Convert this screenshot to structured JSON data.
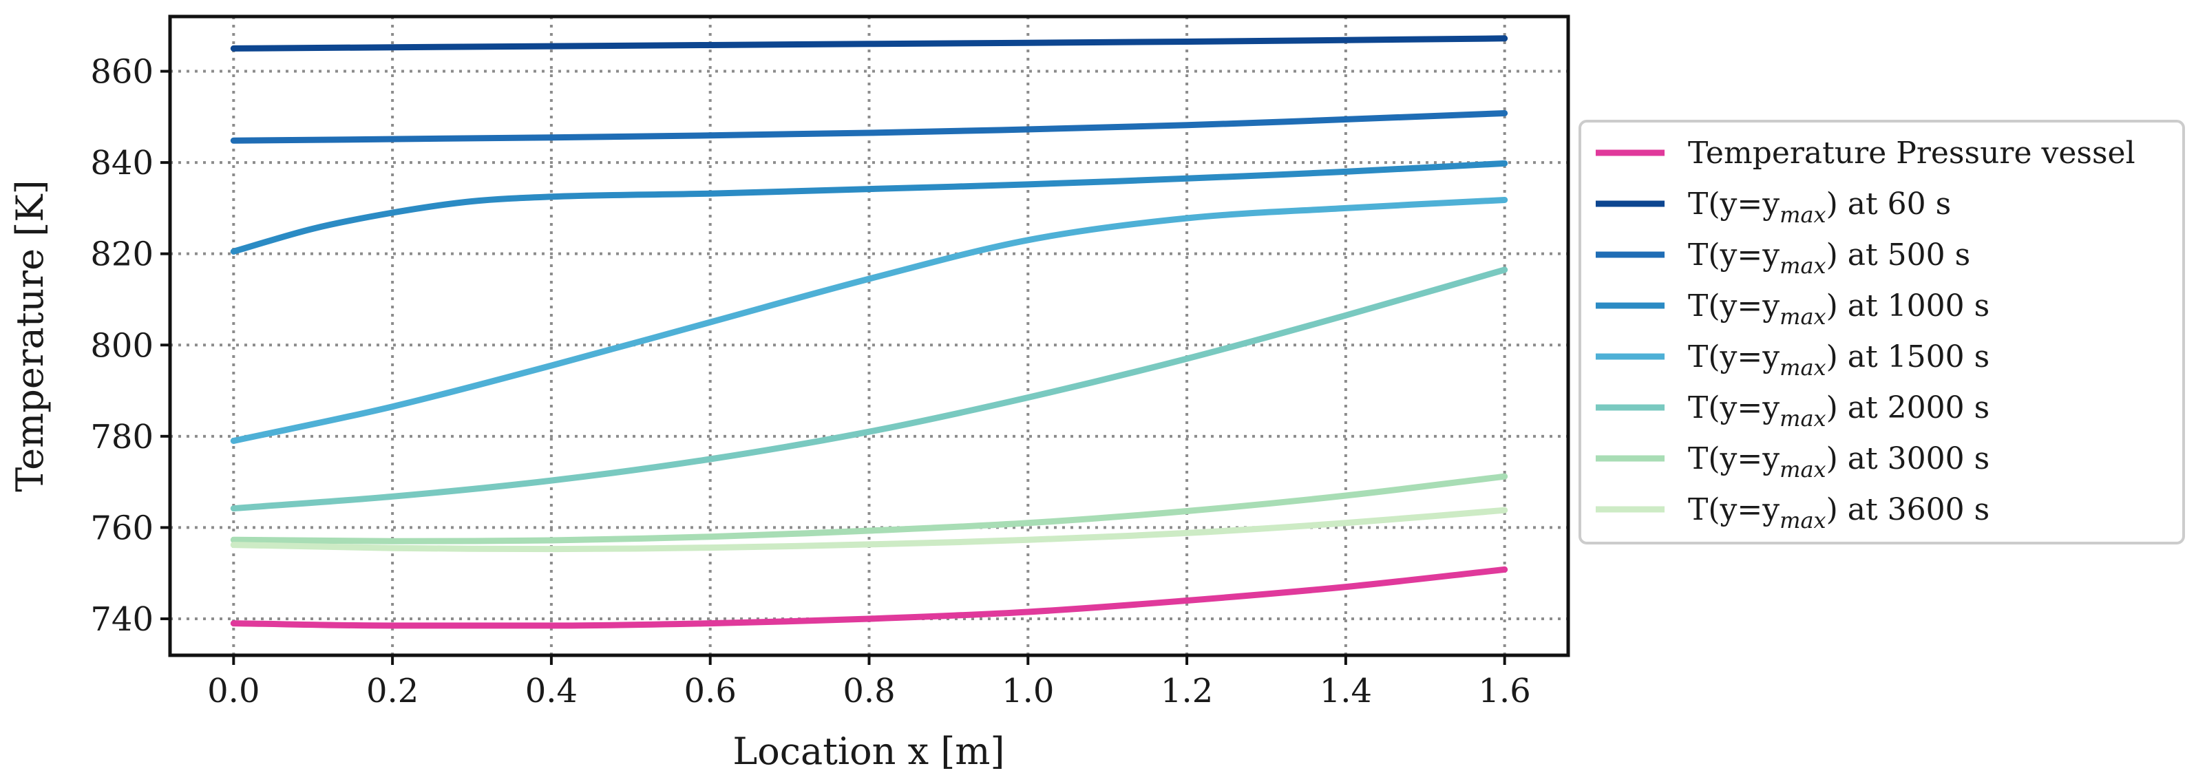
{
  "chart_data": {
    "type": "line",
    "xlabel": "Location x [m]",
    "ylabel": "Temperature [K]",
    "xlim": [
      -0.08,
      1.68
    ],
    "ylim": [
      732,
      872
    ],
    "xticks": [
      0.0,
      0.2,
      0.4,
      0.6,
      0.8,
      1.0,
      1.2,
      1.4,
      1.6
    ],
    "xtick_labels": [
      "0.0",
      "0.2",
      "0.4",
      "0.6",
      "0.8",
      "1.0",
      "1.2",
      "1.4",
      "1.6"
    ],
    "yticks": [
      740,
      760,
      780,
      800,
      820,
      840,
      860
    ],
    "ytick_labels": [
      "740",
      "760",
      "780",
      "800",
      "820",
      "840",
      "860"
    ],
    "grid": true,
    "legend_placement": "outside right",
    "series": [
      {
        "label": "Temperature Pressure vessel",
        "color": "#e0399b",
        "x": [
          0.0,
          0.2,
          0.4,
          0.6,
          0.8,
          1.0,
          1.2,
          1.4,
          1.6
        ],
        "y": [
          739.0,
          738.5,
          738.5,
          739.0,
          740.0,
          741.5,
          744.0,
          747.0,
          750.8
        ]
      },
      {
        "label_prefix": "T(y=y",
        "label_sub": "max",
        "label_suffix": ") at 60 s",
        "color": "#0d4690",
        "x": [
          0.0,
          0.4,
          0.8,
          1.2,
          1.6
        ],
        "y": [
          865.0,
          865.5,
          866.0,
          866.5,
          867.2
        ]
      },
      {
        "label_prefix": "T(y=y",
        "label_sub": "max",
        "label_suffix": ") at 500 s",
        "color": "#1f6db5",
        "x": [
          0.0,
          0.4,
          0.8,
          1.2,
          1.6
        ],
        "y": [
          844.8,
          845.5,
          846.5,
          848.2,
          850.8
        ]
      },
      {
        "label_prefix": "T(y=y",
        "label_sub": "max",
        "label_suffix": ") at 1000 s",
        "color": "#2b8bc4",
        "x": [
          0.0,
          0.1,
          0.2,
          0.3,
          0.4,
          0.6,
          0.8,
          1.0,
          1.2,
          1.4,
          1.6
        ],
        "y": [
          820.5,
          825.5,
          829.0,
          831.5,
          832.5,
          833.2,
          834.2,
          835.2,
          836.5,
          838.0,
          839.8
        ]
      },
      {
        "label_prefix": "T(y=y",
        "label_sub": "max",
        "label_suffix": ") at 1500 s",
        "color": "#4eb0d6",
        "x": [
          0.0,
          0.2,
          0.4,
          0.6,
          0.8,
          1.0,
          1.2,
          1.4,
          1.6
        ],
        "y": [
          779.0,
          786.5,
          795.5,
          805.0,
          814.5,
          823.0,
          827.8,
          830.0,
          831.8
        ]
      },
      {
        "label_prefix": "T(y=y",
        "label_sub": "max",
        "label_suffix": ") at 2000 s",
        "color": "#79c9c0",
        "x": [
          0.0,
          0.2,
          0.4,
          0.6,
          0.8,
          1.0,
          1.2,
          1.4,
          1.6
        ],
        "y": [
          764.2,
          766.8,
          770.3,
          775.0,
          781.0,
          788.5,
          797.0,
          806.5,
          816.5
        ]
      },
      {
        "label_prefix": "T(y=y",
        "label_sub": "max",
        "label_suffix": ") at 3000 s",
        "color": "#a8ddb5",
        "x": [
          0.0,
          0.2,
          0.4,
          0.6,
          0.8,
          1.0,
          1.2,
          1.4,
          1.6
        ],
        "y": [
          757.3,
          757.0,
          757.2,
          758.0,
          759.3,
          761.0,
          763.6,
          767.0,
          771.2
        ]
      },
      {
        "label_prefix": "T(y=y",
        "label_sub": "max",
        "label_suffix": ") at 3600 s",
        "color": "#cdebc5",
        "x": [
          0.0,
          0.2,
          0.4,
          0.6,
          0.8,
          1.0,
          1.2,
          1.4,
          1.6
        ],
        "y": [
          756.2,
          755.5,
          755.3,
          755.6,
          756.3,
          757.3,
          758.8,
          761.0,
          763.8
        ]
      }
    ]
  }
}
